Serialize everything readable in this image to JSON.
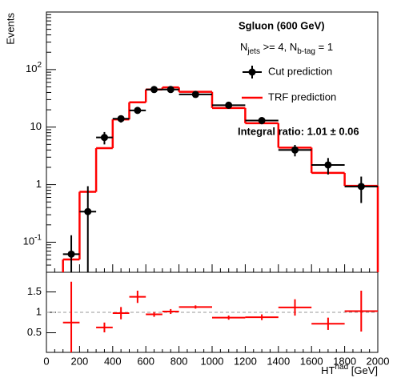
{
  "chart_data": [
    {
      "type": "hist_compare",
      "y_label": "Events",
      "title": "Sgluon (600 GeV)",
      "selection": [
        "N",
        "jets",
        " >= 4, N",
        "b-tag",
        " = 1"
      ],
      "annotation": "Integral ratio: 1.01 ± 0.06",
      "ylog": true,
      "ylim": [
        0.03,
        1000
      ],
      "yticks": [
        {
          "value": 0.1,
          "label": "10",
          "exponent": "-1"
        },
        1,
        10,
        {
          "value": 100,
          "label": "10",
          "exponent": "2"
        }
      ],
      "xlim": [
        0,
        2000
      ],
      "x": [
        150,
        250,
        350,
        450,
        550,
        650,
        750,
        900,
        1100,
        1300,
        1500,
        1700,
        1900
      ],
      "xerr": [
        50,
        50,
        50,
        50,
        50,
        50,
        50,
        100,
        100,
        100,
        100,
        100,
        100
      ],
      "points": {
        "name": "Cut prediction",
        "color": "#000000",
        "values": [
          0.062,
          0.34,
          6.6,
          14,
          19.5,
          45,
          45,
          37,
          24,
          13,
          4,
          2.2,
          0.93
        ],
        "errors": [
          0.07,
          0.6,
          1.6,
          2,
          2.2,
          3.5,
          3.5,
          3,
          2.5,
          1.8,
          0.9,
          0.7,
          0.45
        ]
      },
      "hist": {
        "name": "TRF prediction",
        "color": "#ff0000",
        "bins": [
          100,
          200,
          300,
          400,
          500,
          600,
          700,
          800,
          1000,
          1200,
          1400,
          1600,
          1800,
          2000
        ],
        "values": [
          0.05,
          0.75,
          4.3,
          13.6,
          27,
          45,
          49,
          41,
          21.5,
          11.7,
          4.4,
          1.6,
          0.95
        ]
      }
    },
    {
      "type": "ratio",
      "x_label": [
        "HT",
        "had",
        " [GeV]"
      ],
      "ylim": [
        0.02,
        1.98
      ],
      "yticks": [
        0.5,
        1,
        1.5
      ],
      "reference": 1,
      "xlim": [
        0,
        2000
      ],
      "xticks": [
        0,
        200,
        400,
        600,
        800,
        1000,
        1200,
        1400,
        1600,
        1800,
        2000
      ],
      "x": [
        150,
        250,
        350,
        450,
        550,
        650,
        750,
        900,
        1100,
        1300,
        1500,
        1700,
        1900
      ],
      "xerr": [
        50,
        50,
        50,
        50,
        50,
        50,
        50,
        100,
        100,
        100,
        100,
        100,
        100
      ],
      "color": "#ff0000",
      "values": [
        0.75,
        null,
        0.63,
        0.98,
        1.38,
        0.95,
        1.02,
        1.13,
        0.87,
        0.88,
        1.12,
        0.72,
        1.03
      ],
      "errors": [
        1.0,
        null,
        0.12,
        0.15,
        0.15,
        0.06,
        0.06,
        0.04,
        0.05,
        0.07,
        0.2,
        0.15,
        0.5
      ]
    }
  ]
}
